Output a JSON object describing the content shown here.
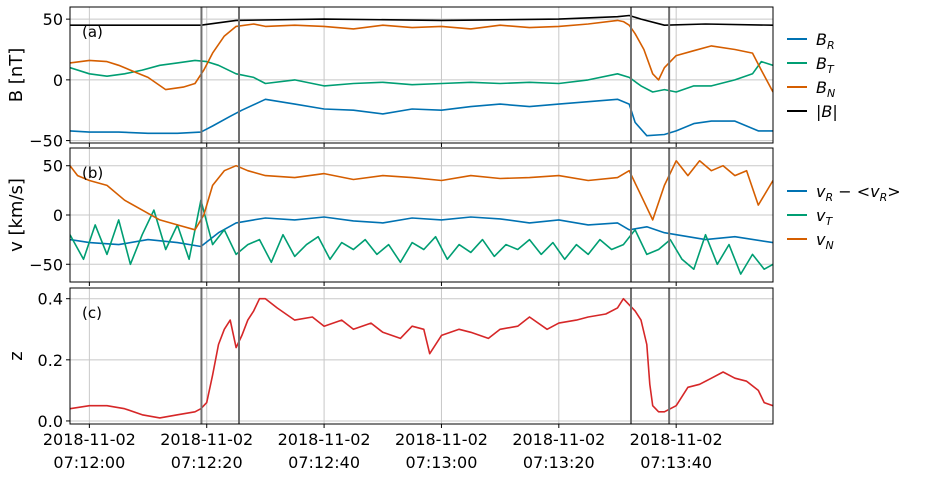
{
  "chart_data": [
    {
      "type": "line",
      "panel_label": "(a)",
      "ylabel": "B [nT]",
      "ylim": [
        -52,
        60
      ],
      "yticks": [
        -50,
        0,
        50
      ],
      "xlim": [
        -3.3,
        116.5
      ],
      "x_unit": "seconds after 2018-11-02 07:12:00",
      "grid": true,
      "legend": "right",
      "vlines": [
        19.1,
        25.5,
        92.3,
        98.8
      ],
      "series": [
        {
          "name": "|B|",
          "label": "|B|",
          "color": "#000000",
          "x": [
            -3.3,
            10,
            19,
            25,
            40,
            60,
            80,
            90,
            92,
            94,
            98,
            105,
            116.5
          ],
          "y": [
            45,
            45,
            45,
            49,
            50,
            49,
            50,
            52,
            53,
            50,
            45,
            46,
            45
          ]
        },
        {
          "name": "B_R",
          "label": "B",
          "sub": "R",
          "color": "#0072b2",
          "x": [
            -3.3,
            0,
            5,
            10,
            15,
            19,
            21,
            24,
            26,
            30,
            35,
            40,
            45,
            50,
            55,
            60,
            65,
            70,
            75,
            80,
            85,
            90,
            92,
            93,
            95,
            98,
            100,
            103,
            106,
            110,
            112,
            114,
            116.5
          ],
          "y": [
            -42,
            -43,
            -43,
            -44,
            -44,
            -43,
            -38,
            -30,
            -25,
            -16,
            -20,
            -24,
            -25,
            -28,
            -24,
            -25,
            -22,
            -20,
            -22,
            -20,
            -18,
            -16,
            -20,
            -35,
            -46,
            -45,
            -42,
            -36,
            -34,
            -34,
            -38,
            -42,
            -42
          ]
        },
        {
          "name": "B_T",
          "label": "B",
          "sub": "T",
          "color": "#009e73",
          "x": [
            -3.3,
            0,
            3,
            6,
            9,
            12,
            15,
            18,
            20,
            22,
            25,
            28,
            30,
            35,
            40,
            45,
            50,
            55,
            60,
            65,
            70,
            75,
            80,
            85,
            90,
            92,
            94,
            96,
            98,
            100,
            103,
            106,
            110,
            113,
            114.5,
            116.5
          ],
          "y": [
            10,
            5,
            3,
            5,
            8,
            12,
            14,
            16,
            15,
            12,
            5,
            2,
            -3,
            0,
            -5,
            -3,
            -2,
            -4,
            -3,
            -2,
            -3,
            -2,
            -3,
            0,
            5,
            2,
            -5,
            -10,
            -8,
            -10,
            -5,
            -5,
            0,
            5,
            15,
            12
          ]
        },
        {
          "name": "B_N",
          "label": "B",
          "sub": "N",
          "color": "#d55e00",
          "x": [
            -3.3,
            0,
            3,
            5,
            8,
            10,
            13,
            16,
            18,
            19.5,
            21,
            23,
            25,
            28,
            30,
            35,
            40,
            45,
            50,
            55,
            60,
            65,
            70,
            75,
            80,
            85,
            90,
            91,
            92,
            93,
            94.5,
            96,
            97,
            98,
            100,
            103,
            106,
            110,
            113,
            114.5,
            116.5
          ],
          "y": [
            14,
            16,
            15,
            12,
            6,
            2,
            -8,
            -6,
            -3,
            8,
            22,
            36,
            44,
            46,
            44,
            45,
            44,
            42,
            45,
            43,
            44,
            42,
            45,
            43,
            44,
            46,
            49,
            48,
            45,
            38,
            25,
            5,
            0,
            10,
            20,
            24,
            28,
            25,
            22,
            8,
            -10
          ]
        }
      ]
    },
    {
      "type": "line",
      "panel_label": "(b)",
      "ylabel": "v [km/s]",
      "ylim": [
        -68,
        68
      ],
      "yticks": [
        -50,
        0,
        50
      ],
      "xlim": [
        -3.3,
        116.5
      ],
      "x_unit": "seconds after 2018-11-02 07:12:00",
      "grid": true,
      "legend": "right",
      "vlines": [
        19.1,
        25.5,
        92.3,
        98.8
      ],
      "series": [
        {
          "name": "v_R - <v_R>",
          "label": "v",
          "sub": "R",
          "label_suffix": " − <v",
          "sub2": "R",
          "label_end": ">",
          "color": "#0072b2",
          "x": [
            -3.3,
            0,
            5,
            10,
            15,
            19,
            22,
            25,
            28,
            30,
            35,
            40,
            45,
            50,
            55,
            60,
            65,
            70,
            75,
            80,
            85,
            90,
            92,
            95,
            98,
            100,
            105,
            110,
            116.5
          ],
          "y": [
            -25,
            -28,
            -30,
            -25,
            -28,
            -32,
            -18,
            -8,
            -5,
            -3,
            -5,
            -2,
            -6,
            -8,
            -3,
            -5,
            -2,
            -4,
            -8,
            -5,
            -10,
            -8,
            -15,
            -12,
            -18,
            -20,
            -25,
            -22,
            -28
          ]
        },
        {
          "name": "v_T",
          "label": "v",
          "sub": "T",
          "color": "#009e73",
          "x": [
            -3.3,
            -1,
            1,
            3,
            5,
            7,
            9,
            11,
            13,
            15,
            17,
            19,
            21,
            23,
            25,
            27,
            29,
            31,
            33,
            35,
            37,
            39,
            41,
            43,
            45,
            47,
            49,
            51,
            53,
            55,
            57,
            59,
            61,
            63,
            65,
            67,
            69,
            71,
            73,
            75,
            77,
            79,
            81,
            83,
            85,
            87,
            89,
            91,
            93,
            95,
            97,
            99,
            101,
            103,
            105,
            107,
            109,
            111,
            113,
            115,
            116.5
          ],
          "y": [
            -20,
            -45,
            -10,
            -40,
            -5,
            -50,
            -20,
            5,
            -35,
            -10,
            -45,
            15,
            -30,
            -15,
            -40,
            -30,
            -25,
            -48,
            -20,
            -42,
            -30,
            -22,
            -45,
            -28,
            -35,
            -25,
            -40,
            -30,
            -48,
            -28,
            -35,
            -22,
            -45,
            -30,
            -38,
            -25,
            -42,
            -30,
            -35,
            -25,
            -40,
            -28,
            -45,
            -30,
            -40,
            -25,
            -35,
            -30,
            -15,
            -40,
            -35,
            -25,
            -45,
            -55,
            -20,
            -50,
            -30,
            -60,
            -40,
            -55,
            -50
          ]
        },
        {
          "name": "v_N",
          "label": "v",
          "sub": "N",
          "color": "#d55e00",
          "x": [
            -3.3,
            -2,
            0,
            3,
            6,
            9,
            12,
            15,
            18,
            19.5,
            21,
            23,
            25,
            27,
            30,
            35,
            40,
            45,
            50,
            55,
            60,
            65,
            70,
            75,
            80,
            85,
            90,
            92,
            94,
            96,
            98,
            100,
            102,
            104,
            106,
            108,
            110,
            112,
            114,
            116.5
          ],
          "y": [
            50,
            40,
            35,
            30,
            15,
            5,
            -5,
            -10,
            -15,
            0,
            30,
            45,
            50,
            45,
            40,
            38,
            42,
            36,
            40,
            38,
            35,
            40,
            37,
            38,
            40,
            35,
            38,
            45,
            20,
            -5,
            30,
            55,
            40,
            55,
            45,
            50,
            40,
            45,
            10,
            35
          ]
        }
      ]
    },
    {
      "type": "line",
      "panel_label": "(c)",
      "ylabel": "z",
      "ylim": [
        -0.01,
        0.435
      ],
      "yticks": [
        0.0,
        0.2,
        0.4
      ],
      "ytick_labels": [
        "0.0",
        "0.2",
        "0.4"
      ],
      "xlim": [
        -3.3,
        116.5
      ],
      "x_unit": "seconds after 2018-11-02 07:12:00",
      "grid": true,
      "vlines": [
        19.1,
        25.5,
        92.3,
        98.8
      ],
      "xticks": [
        0,
        20,
        40,
        60,
        80,
        100
      ],
      "xtick_labels": [
        [
          "2018-11-02",
          "07:12:00"
        ],
        [
          "2018-11-02",
          "07:12:20"
        ],
        [
          "2018-11-02",
          "07:12:40"
        ],
        [
          "2018-11-02",
          "07:13:00"
        ],
        [
          "2018-11-02",
          "07:13:20"
        ],
        [
          "2018-11-02",
          "07:13:40"
        ]
      ],
      "series": [
        {
          "name": "z",
          "color": "#d62728",
          "x": [
            -3.3,
            0,
            3,
            6,
            9,
            12,
            15,
            18,
            19,
            20,
            21,
            22,
            23,
            24,
            25,
            26,
            27,
            28,
            29,
            30,
            32,
            35,
            38,
            40,
            43,
            45,
            48,
            50,
            53,
            55,
            57,
            58,
            60,
            63,
            65,
            68,
            70,
            73,
            75,
            78,
            80,
            83,
            85,
            88,
            90,
            91,
            92,
            93,
            94,
            95,
            95.5,
            96,
            97,
            98,
            100,
            102,
            104,
            106,
            108,
            110,
            112,
            114,
            115,
            116.5
          ],
          "y": [
            0.04,
            0.05,
            0.05,
            0.04,
            0.02,
            0.01,
            0.02,
            0.03,
            0.04,
            0.06,
            0.15,
            0.25,
            0.3,
            0.33,
            0.24,
            0.28,
            0.33,
            0.36,
            0.4,
            0.4,
            0.37,
            0.33,
            0.34,
            0.31,
            0.33,
            0.3,
            0.32,
            0.29,
            0.27,
            0.31,
            0.3,
            0.22,
            0.28,
            0.3,
            0.29,
            0.27,
            0.3,
            0.31,
            0.34,
            0.3,
            0.32,
            0.33,
            0.34,
            0.35,
            0.37,
            0.4,
            0.38,
            0.36,
            0.33,
            0.25,
            0.12,
            0.05,
            0.03,
            0.03,
            0.05,
            0.11,
            0.12,
            0.14,
            0.16,
            0.14,
            0.13,
            0.1,
            0.06,
            0.05
          ]
        }
      ]
    }
  ]
}
